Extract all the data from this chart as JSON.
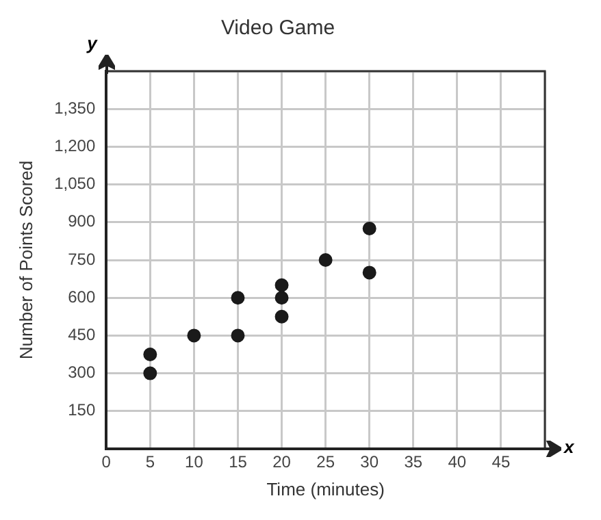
{
  "chart_data": {
    "type": "scatter",
    "title": "Video Game",
    "xlabel": "Time (minutes)",
    "ylabel": "Number of Points Scored",
    "annotations": [
      "x",
      "y"
    ],
    "x": [
      5,
      5,
      10,
      15,
      15,
      20,
      20,
      20,
      25,
      30,
      30
    ],
    "values": [
      375,
      300,
      450,
      600,
      450,
      650,
      600,
      525,
      750,
      875,
      700
    ],
    "color": "#1a1a1a",
    "marker": "circle",
    "xlim": [
      0,
      50
    ],
    "xticks": [
      0,
      5,
      10,
      15,
      20,
      25,
      30,
      35,
      40,
      45,
      {
        "value": 50,
        "label": null
      }
    ],
    "ylim": [
      0,
      1500
    ],
    "yticks": [
      {
        "value": 0,
        "label": null
      },
      {
        "value": 150,
        "label": "150"
      },
      {
        "value": 300,
        "label": "300"
      },
      {
        "value": 450,
        "label": "450"
      },
      {
        "value": 600,
        "label": "600"
      },
      {
        "value": 750,
        "label": "750"
      },
      {
        "value": 900,
        "label": "900"
      },
      {
        "value": 1050,
        "label": "1,050"
      },
      {
        "value": 1200,
        "label": "1,200"
      },
      {
        "value": 1350,
        "label": "1,350"
      },
      {
        "value": 1500,
        "label": null
      }
    ],
    "grid": true,
    "legend": false
  }
}
